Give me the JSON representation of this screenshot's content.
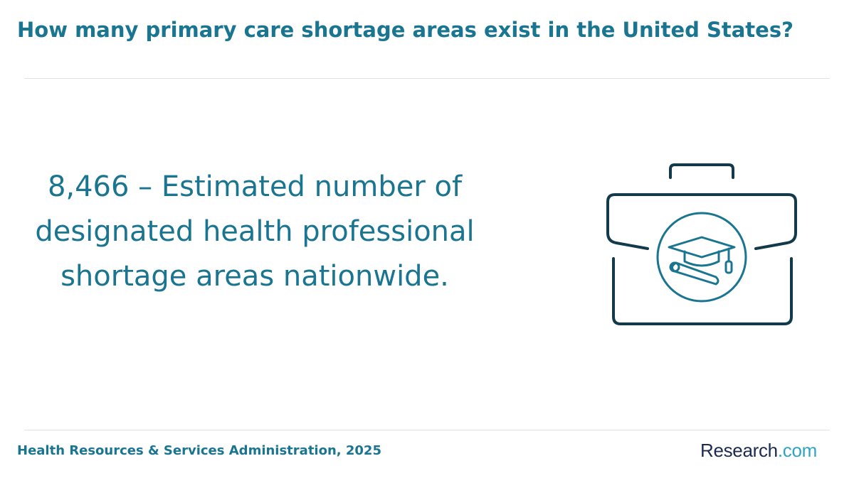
{
  "header": {
    "title": "How many primary care shortage areas exist in the United States?"
  },
  "body": {
    "statement": "8,466 – Estimated number of designated health professional shortage areas nationwide."
  },
  "footer": {
    "source": "Health Resources & Services Administration, 2025",
    "logo": {
      "name": "Research",
      "domain": ".com"
    }
  }
}
